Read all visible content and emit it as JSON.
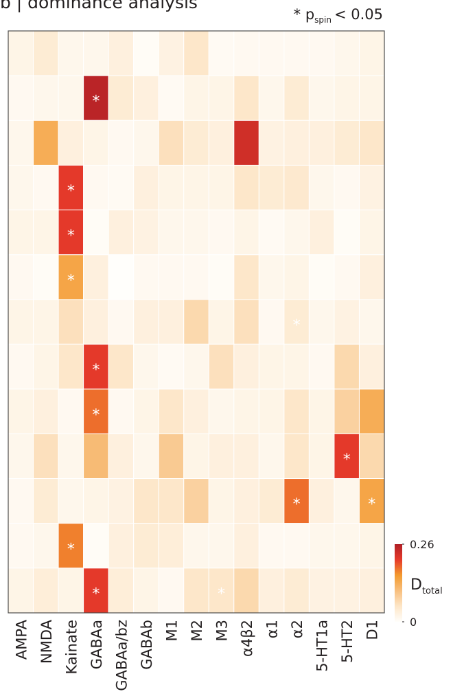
{
  "chart_data": {
    "type": "heatmap",
    "title": "b | dominance analysis",
    "note": {
      "prefix": "* p",
      "subscript": "spin",
      "suffix": "< 0.05"
    },
    "columns": [
      "AMPA",
      "NMDA",
      "Kainate",
      "GABAa",
      "GABAa/bz",
      "GABAb",
      "M1",
      "M2",
      "M3",
      "α4β2",
      "α1",
      "α2",
      "5-HT1a",
      "5-HT2",
      "D1"
    ],
    "values": [
      [
        0.02,
        0.04,
        0.015,
        0.015,
        0.03,
        0.005,
        0.025,
        0.05,
        0.008,
        0.01,
        0.01,
        0.01,
        0.01,
        0.015,
        0.02
      ],
      [
        0.01,
        0.015,
        0.015,
        0.25,
        0.04,
        0.03,
        0.008,
        0.02,
        0.02,
        0.05,
        0.015,
        0.04,
        0.015,
        0.02,
        0.02
      ],
      [
        0.015,
        0.13,
        0.03,
        0.02,
        0.01,
        0.015,
        0.06,
        0.04,
        0.03,
        0.23,
        0.025,
        0.03,
        0.03,
        0.04,
        0.05
      ],
      [
        0.015,
        0.01,
        0.21,
        0.01,
        0.008,
        0.03,
        0.02,
        0.02,
        0.02,
        0.05,
        0.04,
        0.045,
        0.015,
        0.01,
        0.025
      ],
      [
        0.02,
        0.02,
        0.21,
        0.005,
        0.03,
        0.025,
        0.015,
        0.015,
        0.01,
        0.02,
        0.008,
        0.015,
        0.03,
        0.005,
        0.02
      ],
      [
        0.01,
        0.005,
        0.14,
        0.03,
        0.0,
        0.01,
        0.01,
        0.01,
        0.005,
        0.05,
        0.015,
        0.02,
        0.005,
        0.01,
        0.03
      ],
      [
        0.02,
        0.02,
        0.06,
        0.03,
        0.01,
        0.03,
        0.03,
        0.07,
        0.02,
        0.06,
        0.01,
        0.04,
        0.015,
        0.025,
        0.015
      ],
      [
        0.01,
        0.02,
        0.05,
        0.21,
        0.05,
        0.015,
        0.008,
        0.015,
        0.06,
        0.03,
        0.02,
        0.02,
        0.01,
        0.07,
        0.03
      ],
      [
        0.02,
        0.03,
        0.01,
        0.18,
        0.01,
        0.02,
        0.05,
        0.03,
        0.015,
        0.02,
        0.02,
        0.05,
        0.02,
        0.08,
        0.13
      ],
      [
        0.015,
        0.06,
        0.015,
        0.11,
        0.03,
        0.015,
        0.09,
        0.02,
        0.03,
        0.03,
        0.015,
        0.05,
        0.02,
        0.21,
        0.07
      ],
      [
        0.01,
        0.04,
        0.015,
        0.02,
        0.025,
        0.05,
        0.05,
        0.08,
        0.02,
        0.03,
        0.04,
        0.18,
        0.03,
        0.015,
        0.14
      ],
      [
        0.01,
        0.015,
        0.17,
        0.005,
        0.03,
        0.04,
        0.035,
        0.015,
        0.015,
        0.03,
        0.01,
        0.01,
        0.015,
        0.015,
        0.02
      ],
      [
        0.02,
        0.035,
        0.02,
        0.21,
        0.035,
        0.02,
        0.01,
        0.05,
        0.05,
        0.07,
        0.03,
        0.04,
        0.025,
        0.025,
        0.03
      ]
    ],
    "significance_mark": "*",
    "significant": [
      [
        1,
        3
      ],
      [
        3,
        2
      ],
      [
        4,
        2
      ],
      [
        5,
        2
      ],
      [
        6,
        11
      ],
      [
        7,
        3
      ],
      [
        8,
        3
      ],
      [
        9,
        13
      ],
      [
        10,
        11
      ],
      [
        10,
        14
      ],
      [
        11,
        2
      ],
      [
        12,
        3
      ],
      [
        12,
        8
      ]
    ],
    "zlim": [
      0,
      0.26
    ],
    "zticks": [
      0,
      0.26
    ],
    "colorbar_label": {
      "main": "D",
      "subscript": "total"
    },
    "colormap": [
      "#fffefb",
      "#fde6c8",
      "#f8bf7e",
      "#f39a2e",
      "#e63a2a",
      "#b01f26"
    ]
  }
}
